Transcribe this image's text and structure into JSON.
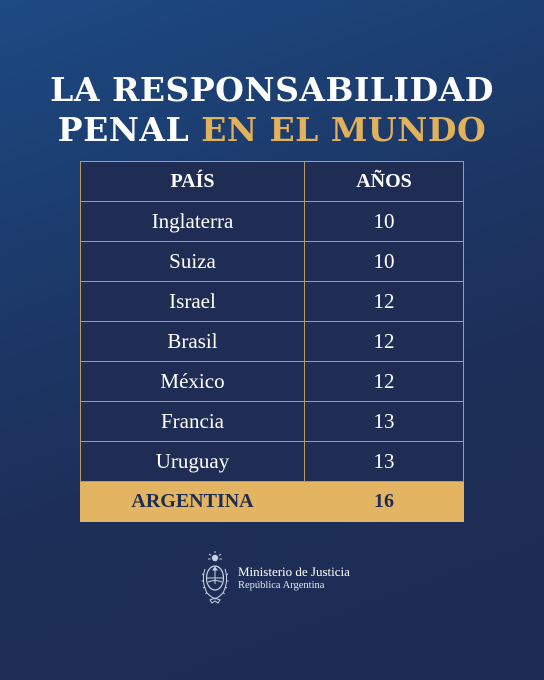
{
  "title": {
    "line1": "LA RESPONSABILIDAD",
    "line2_plain": "PENAL ",
    "line2_accent": "EN EL MUNDO"
  },
  "table": {
    "headers": [
      "PAÍS",
      "AÑOS"
    ],
    "rows": [
      {
        "pais": "Inglaterra",
        "anos": "10"
      },
      {
        "pais": "Suiza",
        "anos": "10"
      },
      {
        "pais": "Israel",
        "anos": "12"
      },
      {
        "pais": "Brasil",
        "anos": "12"
      },
      {
        "pais": "México",
        "anos": "12"
      },
      {
        "pais": "Francia",
        "anos": "13"
      },
      {
        "pais": "Uruguay",
        "anos": "13"
      }
    ],
    "highlight": {
      "pais": "ARGENTINA",
      "anos": "16"
    }
  },
  "footer": {
    "emblem_icon": "coat-of-arms-icon",
    "org_name": "Ministerio de Justicia",
    "country": "República Argentina"
  },
  "colors": {
    "accent": "#e3b562",
    "background": "#1e2b52"
  }
}
